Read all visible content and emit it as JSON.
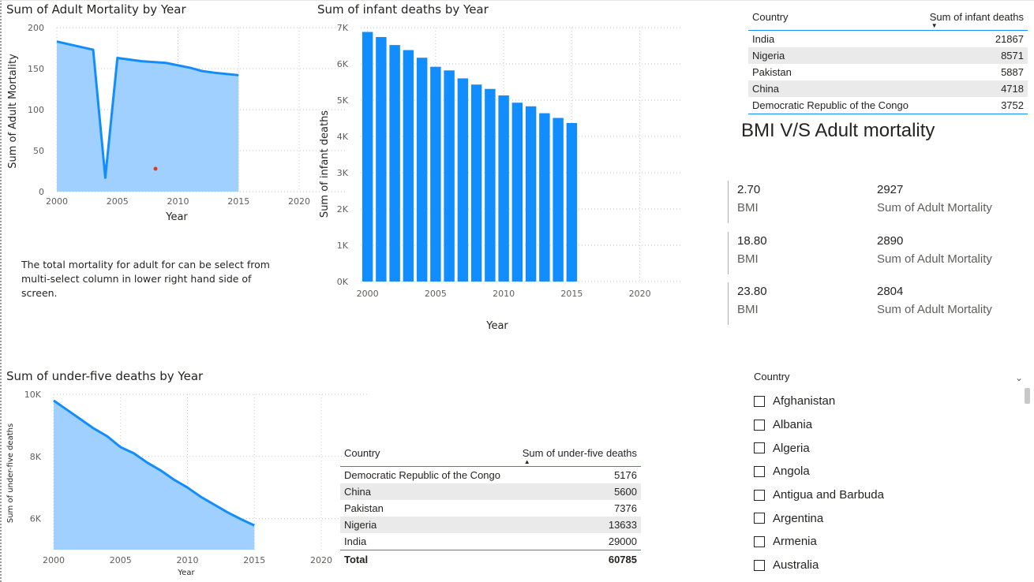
{
  "charts": {
    "adult_mortality": {
      "title": "Sum of Adult Mortality by Year",
      "ylabel": "Sum of Adult Mortality",
      "xlabel": "Year",
      "y_ticks": [
        "200",
        "150",
        "100",
        "50",
        "0"
      ],
      "x_ticks": [
        "2000",
        "2005",
        "2010",
        "2015",
        "2020"
      ]
    },
    "infant_deaths": {
      "title": "Sum of infant deaths by Year",
      "ylabel": "Sum of infant deaths",
      "xlabel": "Year",
      "y_ticks": [
        "7K",
        "6K",
        "5K",
        "4K",
        "3K",
        "2K",
        "1K",
        "0K"
      ],
      "x_ticks": [
        "2000",
        "2005",
        "2010",
        "2015",
        "2020"
      ]
    },
    "under_five": {
      "title": "Sum of under-five deaths by Year",
      "ylabel": "Sum of under-five deaths",
      "xlabel": "Year",
      "y_ticks": [
        "10K",
        "8K",
        "6K"
      ],
      "x_ticks": [
        "2000",
        "2005",
        "2010",
        "2015",
        "2020"
      ]
    }
  },
  "chart_data": [
    {
      "type": "area",
      "title": "Sum of Adult Mortality by Year",
      "xlabel": "Year",
      "ylabel": "Sum of Adult Mortality",
      "x": [
        2000,
        2003,
        2004,
        2005,
        2007,
        2009,
        2011,
        2012,
        2013,
        2015
      ],
      "values": [
        183,
        173,
        17,
        163,
        159,
        157,
        151,
        147,
        145,
        142
      ],
      "xlim": [
        2000,
        2020
      ],
      "ylim": [
        0,
        200
      ],
      "color": "#118dff"
    },
    {
      "type": "bar",
      "title": "Sum of infant deaths by Year",
      "xlabel": "Year",
      "ylabel": "Sum of infant deaths",
      "categories": [
        2000,
        2001,
        2002,
        2003,
        2004,
        2005,
        2006,
        2007,
        2008,
        2009,
        2010,
        2011,
        2012,
        2013,
        2014,
        2015
      ],
      "values": [
        6880,
        6740,
        6520,
        6380,
        6170,
        5920,
        5820,
        5600,
        5430,
        5310,
        5130,
        4930,
        4830,
        4640,
        4510,
        4370
      ],
      "xlim": [
        2000,
        2020
      ],
      "ylim": [
        0,
        7000
      ],
      "color": "#118dff"
    },
    {
      "type": "area",
      "title": "Sum of under-five deaths by Year",
      "xlabel": "Year",
      "ylabel": "Sum of under-five deaths",
      "x": [
        2000,
        2001,
        2002,
        2003,
        2004,
        2005,
        2006,
        2007,
        2008,
        2009,
        2010,
        2011,
        2012,
        2013,
        2014,
        2015
      ],
      "values": [
        9800,
        9500,
        9200,
        8900,
        8650,
        8300,
        8100,
        7800,
        7550,
        7250,
        7000,
        6700,
        6450,
        6200,
        5980,
        5780
      ],
      "xlim": [
        2000,
        2020
      ],
      "ylim": [
        5000,
        10000
      ],
      "color": "#118dff"
    }
  ],
  "note": "The total mortality for adult for can be select from multi-select column in lower right hand side of screen.",
  "infant_table": {
    "col1": "Country",
    "col2": "Sum of infant deaths",
    "rows": [
      {
        "country": "India",
        "value": "21867"
      },
      {
        "country": "Nigeria",
        "value": "8571"
      },
      {
        "country": "Pakistan",
        "value": "5887"
      },
      {
        "country": "China",
        "value": "4718"
      },
      {
        "country": "Democratic Republic of the Congo",
        "value": "3752"
      }
    ]
  },
  "under_five_table": {
    "col1": "Country",
    "col2": "Sum of under-five deaths",
    "rows": [
      {
        "country": "Democratic Republic of the Congo",
        "value": "5176"
      },
      {
        "country": "China",
        "value": "5600"
      },
      {
        "country": "Pakistan",
        "value": "7376"
      },
      {
        "country": "Nigeria",
        "value": "13633"
      },
      {
        "country": "India",
        "value": "29000"
      }
    ],
    "total_label": "Total",
    "total_value": "60785"
  },
  "bmi_section": {
    "title": "BMI V/S Adult mortality",
    "cards": [
      {
        "bmi": "2.70",
        "bmi_label": "BMI",
        "mortality": "2927",
        "mortality_label": "Sum of Adult Mortality"
      },
      {
        "bmi": "18.80",
        "bmi_label": "BMI",
        "mortality": "2890",
        "mortality_label": "Sum of Adult Mortality"
      },
      {
        "bmi": "23.80",
        "bmi_label": "BMI",
        "mortality": "2804",
        "mortality_label": "Sum of Adult Mortality"
      }
    ]
  },
  "slicer": {
    "title": "Country",
    "items": [
      "Afghanistan",
      "Albania",
      "Algeria",
      "Angola",
      "Antigua and Barbuda",
      "Argentina",
      "Armenia",
      "Australia"
    ]
  }
}
